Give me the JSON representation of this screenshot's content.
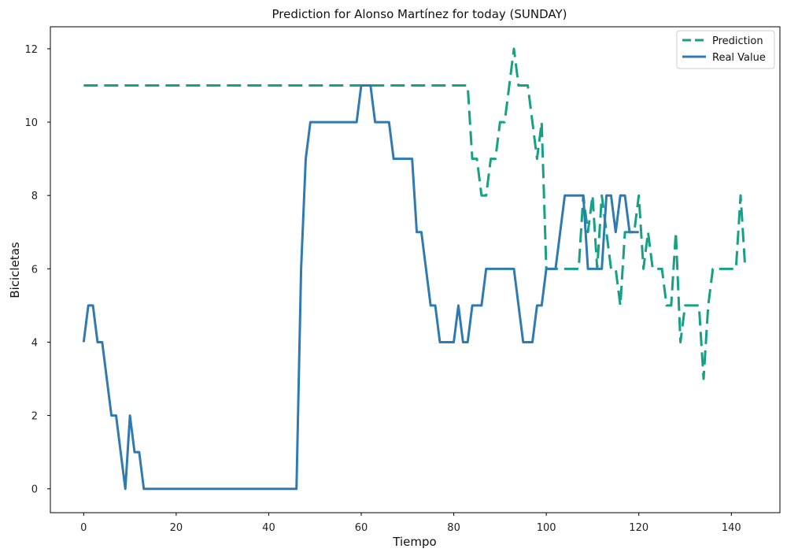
{
  "chart_data": {
    "type": "line",
    "title": "Prediction for Alonso Martínez for today (SUNDAY)",
    "xlabel": "Tiempo",
    "ylabel": "Bicicletas",
    "xlim": [
      -7.2,
      150.5
    ],
    "ylim": [
      -0.65,
      12.6
    ],
    "xticks": [
      0,
      20,
      40,
      60,
      80,
      100,
      120,
      140
    ],
    "yticks": [
      0,
      2,
      4,
      6,
      8,
      10,
      12
    ],
    "grid": false,
    "legend_position": "top-right",
    "series": [
      {
        "name": "Prediction",
        "color": "#16a085",
        "style": "dashed",
        "values": [
          11,
          11,
          11,
          11,
          11,
          11,
          11,
          11,
          11,
          11,
          11,
          11,
          11,
          11,
          11,
          11,
          11,
          11,
          11,
          11,
          11,
          11,
          11,
          11,
          11,
          11,
          11,
          11,
          11,
          11,
          11,
          11,
          11,
          11,
          11,
          11,
          11,
          11,
          11,
          11,
          11,
          11,
          11,
          11,
          11,
          11,
          11,
          11,
          11,
          11,
          11,
          11,
          11,
          11,
          11,
          11,
          11,
          11,
          11,
          11,
          11,
          11,
          11,
          11,
          11,
          11,
          11,
          11,
          11,
          11,
          11,
          11,
          11,
          11,
          11,
          11,
          11,
          11,
          11,
          11,
          11,
          11,
          11,
          11,
          9,
          9,
          8,
          8,
          9,
          9,
          10,
          10,
          11,
          12,
          11,
          11,
          11,
          10,
          9,
          10,
          6,
          6,
          6,
          6,
          6,
          6,
          6,
          6,
          8,
          7,
          8,
          6,
          8,
          7,
          6,
          6,
          5,
          7,
          7,
          7,
          8,
          6,
          7,
          6,
          6,
          6,
          5,
          5,
          7,
          4,
          5,
          5,
          5,
          5,
          3,
          5,
          6,
          6,
          6,
          6,
          6,
          6,
          8,
          6
        ]
      },
      {
        "name": "Real Value",
        "color": "#2e7bb4",
        "style": "solid",
        "values": [
          4,
          5,
          5,
          4,
          4,
          3,
          2,
          2,
          1,
          0,
          2,
          1,
          1,
          0,
          0,
          0,
          0,
          0,
          0,
          0,
          0,
          0,
          0,
          0,
          0,
          0,
          0,
          0,
          0,
          0,
          0,
          0,
          0,
          0,
          0,
          0,
          0,
          0,
          0,
          0,
          0,
          0,
          0,
          0,
          0,
          0,
          0,
          6,
          9,
          10,
          10,
          10,
          10,
          10,
          10,
          10,
          10,
          10,
          10,
          10,
          11,
          11,
          11,
          10,
          10,
          10,
          10,
          9,
          9,
          9,
          9,
          9,
          7,
          7,
          6,
          5,
          5,
          4,
          4,
          4,
          4,
          5,
          4,
          4,
          5,
          5,
          5,
          6,
          6,
          6,
          6,
          6,
          6,
          6,
          5,
          4,
          4,
          4,
          5,
          5,
          6,
          6,
          6,
          7,
          8,
          8,
          8,
          8,
          8,
          6,
          6,
          6,
          6,
          8,
          8,
          7,
          8,
          8,
          7,
          7,
          7
        ]
      }
    ]
  }
}
